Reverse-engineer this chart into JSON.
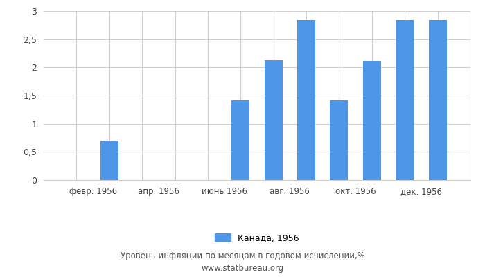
{
  "month_positions": [
    1,
    2,
    3,
    4,
    5,
    6,
    7,
    8,
    9,
    10,
    11,
    12
  ],
  "month_values": [
    0.0,
    0.7,
    0.0,
    0.0,
    0.0,
    1.42,
    2.13,
    2.84,
    1.42,
    2.11,
    2.84,
    2.84
  ],
  "tick_positions": [
    1.5,
    3.5,
    5.5,
    7.5,
    9.5,
    11.5
  ],
  "tick_labels": [
    "февр. 1956",
    "апр. 1956",
    "июнь 1956",
    "авг. 1956",
    "окт. 1956",
    "дек. 1956"
  ],
  "bar_color": "#4d96e8",
  "bar_width": 0.55,
  "xlim": [
    0.0,
    13.0
  ],
  "ylim": [
    0,
    3.0
  ],
  "yticks": [
    0,
    0.5,
    1.0,
    1.5,
    2.0,
    2.5,
    3.0
  ],
  "ytick_labels": [
    "0",
    "0,5",
    "1",
    "1,5",
    "2",
    "2,5",
    "3"
  ],
  "legend_label": "Канада, 1956",
  "footer_line1": "Уровень инфляции по месяцам в годовом исчислении,%",
  "footer_line2": "www.statbureau.org",
  "background_color": "#ffffff",
  "grid_color": "#d0d0d0"
}
